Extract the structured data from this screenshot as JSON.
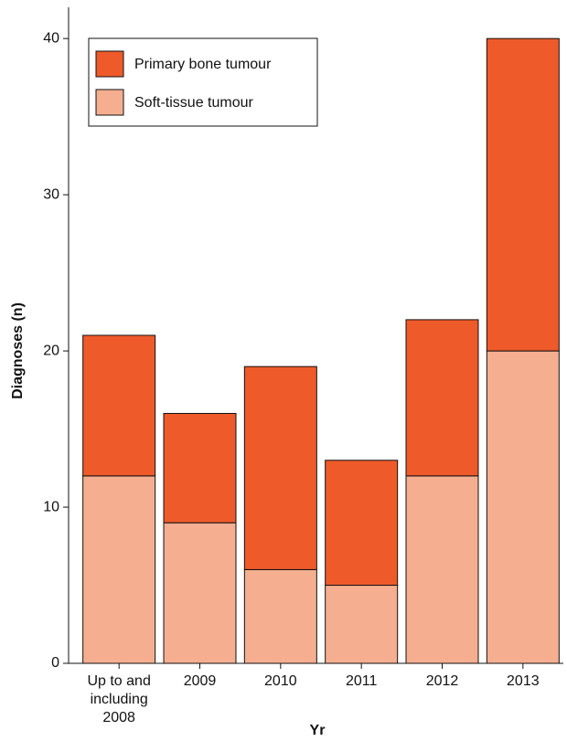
{
  "chart_data": {
    "type": "stacked-bar",
    "x_label": "Yr",
    "y_label": "Diagnoses (n)",
    "categories": [
      "Up to and including 2008",
      "2009",
      "2010",
      "2011",
      "2012",
      "2013"
    ],
    "series": [
      {
        "name": "Soft-tissue tumour",
        "color": "#f5ae90",
        "values": [
          12,
          9,
          6,
          5,
          12,
          20
        ]
      },
      {
        "name": "Primary bone tumour",
        "color": "#ee5a2a",
        "values": [
          9,
          7,
          13,
          8,
          10,
          20
        ]
      }
    ],
    "ylim": [
      0,
      42
    ],
    "yticks": [
      0,
      10,
      20,
      30,
      40
    ],
    "legend": "upper-left"
  }
}
